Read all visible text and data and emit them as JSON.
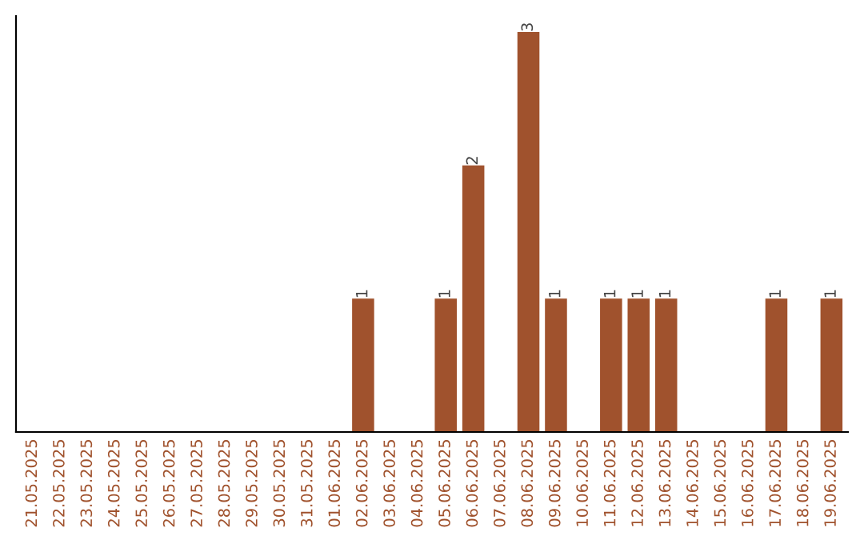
{
  "chart_data": {
    "type": "bar",
    "categories": [
      "21.05.2025",
      "22.05.2025",
      "23.05.2025",
      "24.05.2025",
      "25.05.2025",
      "26.05.2025",
      "27.05.2025",
      "28.05.2025",
      "29.05.2025",
      "30.05.2025",
      "31.05.2025",
      "01.06.2025",
      "02.06.2025",
      "03.06.2025",
      "04.06.2025",
      "05.06.2025",
      "06.06.2025",
      "07.06.2025",
      "08.06.2025",
      "09.06.2025",
      "10.06.2025",
      "11.06.2025",
      "12.06.2025",
      "13.06.2025",
      "14.06.2025",
      "15.06.2025",
      "16.06.2025",
      "17.06.2025",
      "18.06.2025",
      "19.06.2025"
    ],
    "values": [
      null,
      null,
      null,
      null,
      null,
      null,
      null,
      null,
      null,
      null,
      null,
      null,
      1,
      null,
      null,
      1,
      2,
      null,
      3,
      1,
      null,
      1,
      1,
      1,
      null,
      null,
      null,
      1,
      null,
      1
    ],
    "value_labels": [
      null,
      null,
      null,
      null,
      null,
      null,
      null,
      null,
      null,
      null,
      null,
      null,
      "1",
      null,
      null,
      "1",
      "2",
      null,
      "3",
      "1",
      null,
      "1",
      "1",
      "1",
      null,
      null,
      null,
      "1",
      null,
      "1"
    ],
    "color": "#a0522d",
    "grid": false,
    "legend": false
  }
}
